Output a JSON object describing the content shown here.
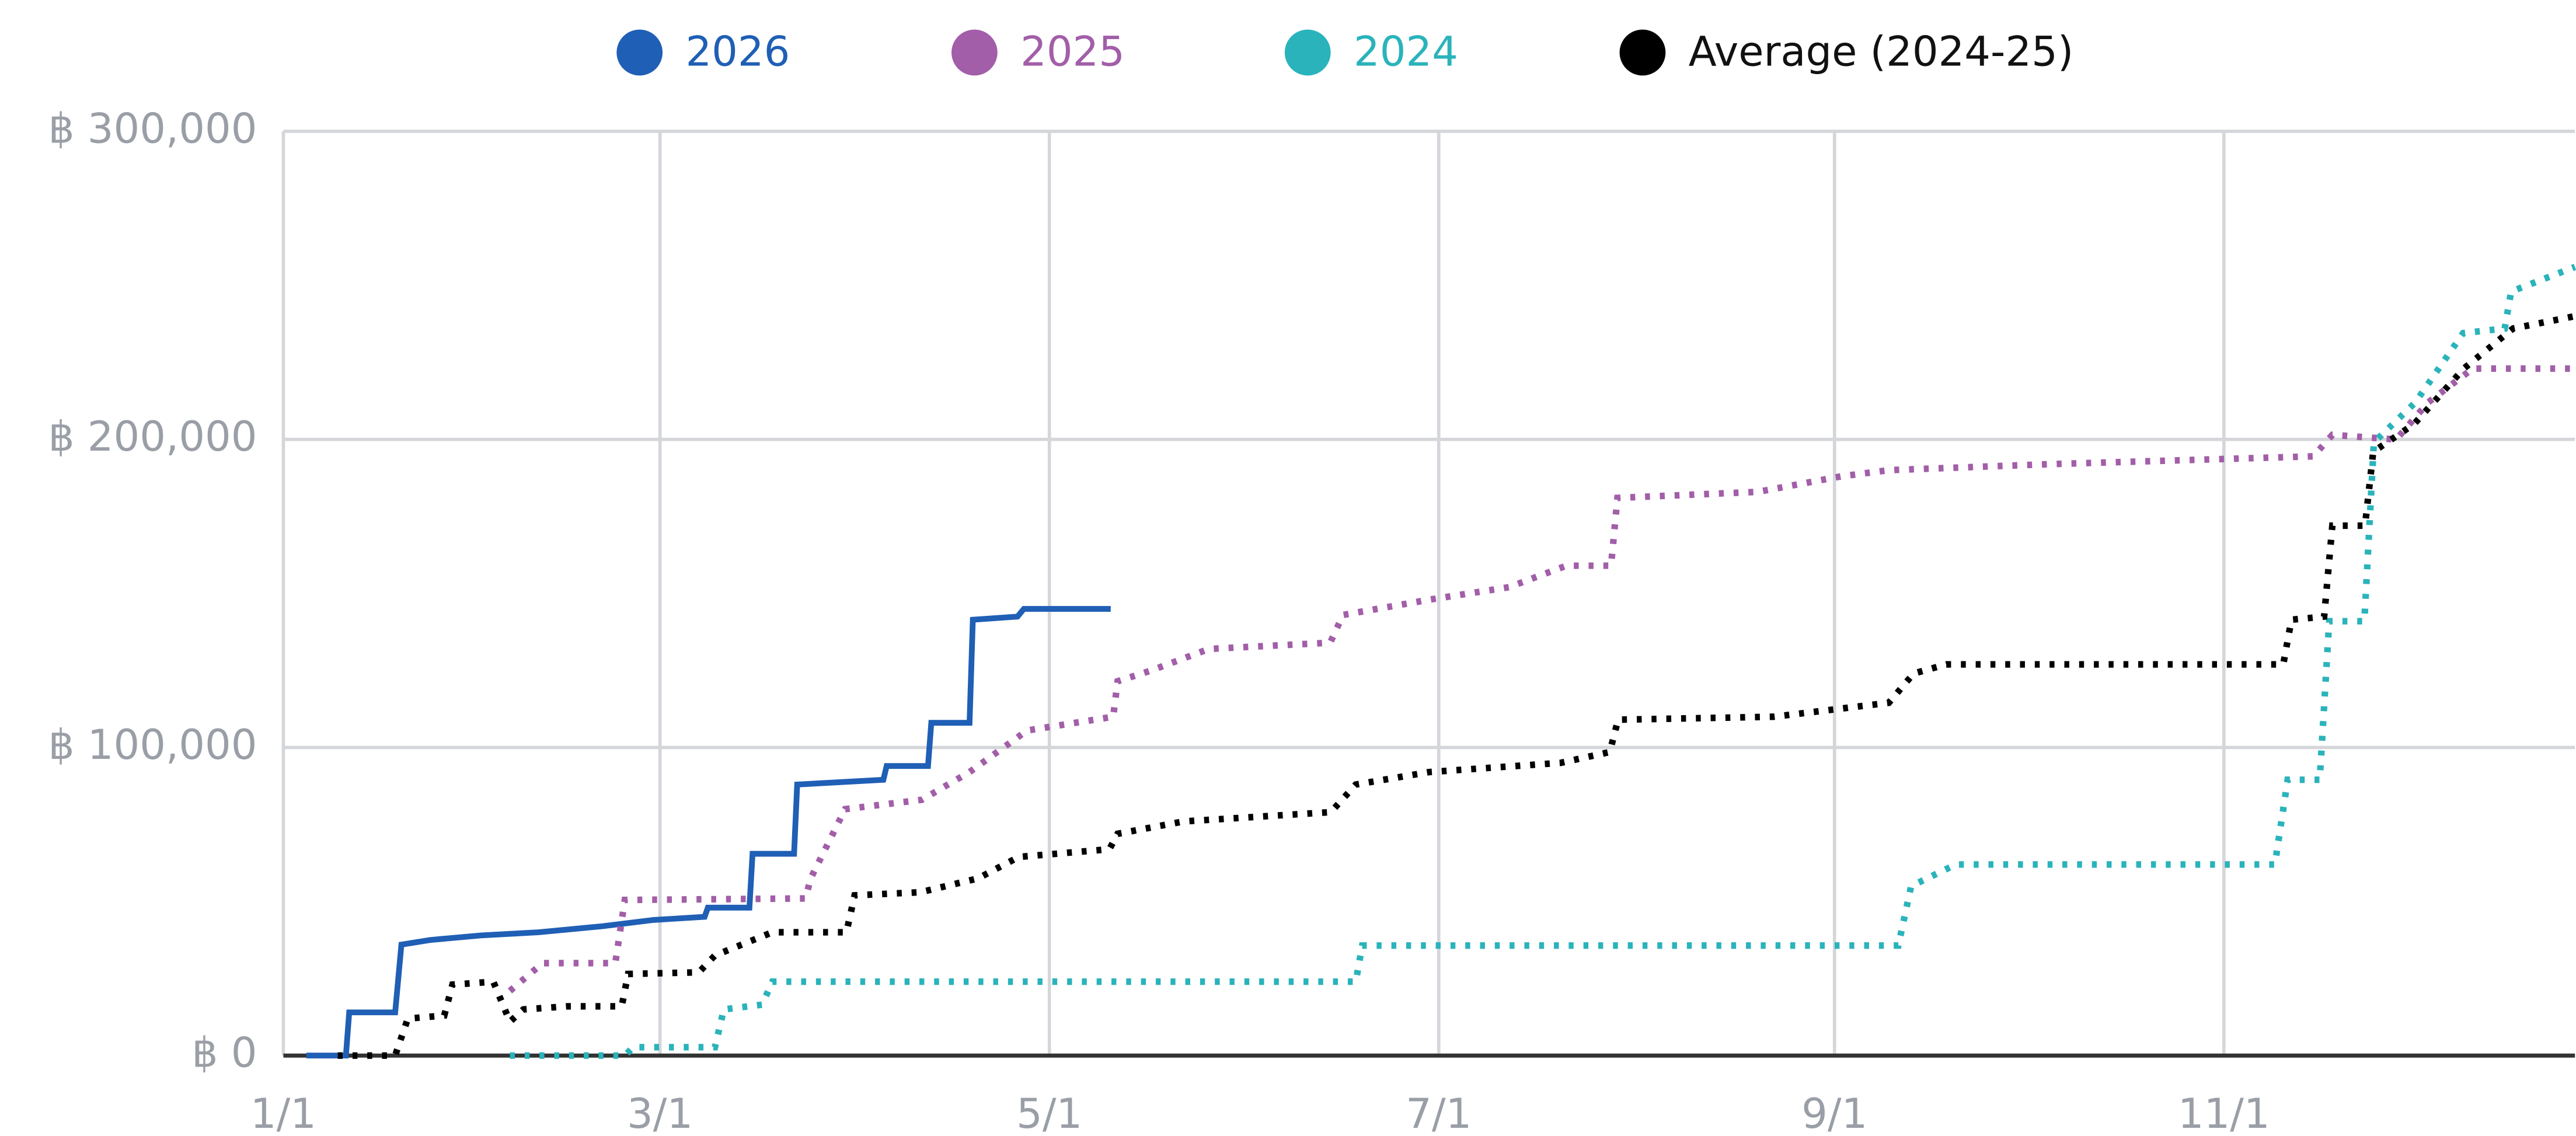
{
  "chart_data": {
    "type": "line",
    "xlim": [
      0,
      359
    ],
    "xticks": [
      {
        "value": 0,
        "label": "1/1"
      },
      {
        "value": 59,
        "label": "3/1"
      },
      {
        "value": 120,
        "label": "5/1"
      },
      {
        "value": 181,
        "label": "7/1"
      },
      {
        "value": 243,
        "label": "9/1"
      },
      {
        "value": 304,
        "label": "11/1"
      }
    ],
    "ylim": [
      0,
      300000
    ],
    "yticks": [
      {
        "value": 0,
        "label": "฿ 0"
      },
      {
        "value": 100000,
        "label": "฿ 100,000"
      },
      {
        "value": 200000,
        "label": "฿ 200,000"
      },
      {
        "value": 300000,
        "label": "฿ 300,000"
      }
    ],
    "grid": true,
    "legend": "top",
    "series": [
      {
        "name": "2026",
        "color": "#1f5fb5",
        "dotted": false,
        "x": [
          3.6,
          9.8,
          10.3,
          17.5,
          18.5,
          23,
          31,
          40,
          50,
          58,
          66,
          66.5,
          73,
          73.5,
          80,
          80.5,
          94,
          94.5,
          101,
          101.5,
          107.5,
          108,
          115,
          116,
          129.6
        ],
        "values": [
          0,
          0,
          14000,
          14000,
          36000,
          37500,
          39000,
          40000,
          42000,
          44000,
          45000,
          48000,
          48000,
          65500,
          65500,
          88000,
          89500,
          94000,
          94000,
          108000,
          108000,
          141500,
          142500,
          145000,
          145000
        ]
      },
      {
        "name": "2025",
        "color": "#a25ea8",
        "dotted": true,
        "x": [
          35.5,
          40.6,
          52,
          53.5,
          81.8,
          82.6,
          88,
          100,
          107.5,
          116.5,
          130,
          130.7,
          136,
          145,
          164,
          166,
          179.5,
          192,
          201,
          208,
          209,
          231,
          244,
          251.5,
          277,
          318,
          321,
          331,
          336,
          343,
          359
        ],
        "values": [
          21000,
          30000,
          30000,
          50500,
          51000,
          57500,
          80000,
          83000,
          92000,
          105500,
          110000,
          121500,
          125000,
          132000,
          134000,
          143000,
          148000,
          152000,
          159000,
          159000,
          181000,
          183000,
          188000,
          190000,
          192000,
          194500,
          201500,
          200000,
          212000,
          223000,
          223000
        ]
      },
      {
        "name": "2024",
        "color": "#2ab3bb",
        "dotted": true,
        "x": [
          35.5,
          53.5,
          54.8,
          67.6,
          69,
          75,
          76.6,
          168,
          169,
          253,
          255,
          262,
          312,
          314,
          319,
          320.5,
          326,
          327.5,
          334,
          341.5,
          348,
          349,
          359
        ],
        "values": [
          0,
          0,
          2700,
          2700,
          15000,
          16500,
          24000,
          24000,
          35700,
          35700,
          55000,
          62000,
          62000,
          89500,
          89500,
          141000,
          141000,
          199000,
          212000,
          234500,
          236000,
          248000,
          256000
        ]
      },
      {
        "name": "Average (2024-25)",
        "color": "#000000",
        "dotted": true,
        "x": [
          8.5,
          17.5,
          19.5,
          25.2,
          26.5,
          32.9,
          35.5,
          37.6,
          44.5,
          53,
          54,
          65.1,
          67.6,
          76.6,
          88.2,
          89.5,
          99.8,
          108.8,
          115.2,
          129.4,
          130.7,
          141,
          164.1,
          168,
          179.5,
          200.1,
          207.8,
          209.1,
          233.5,
          251.5,
          255.4,
          260.5,
          313.3,
          314.6,
          319.7,
          321,
          326.1,
          327.4,
          333.8,
          341.6,
          349.3,
          359
        ],
        "values": [
          0,
          0,
          12000,
          13000,
          23000,
          24000,
          11000,
          15000,
          16000,
          16000,
          26500,
          27000,
          32500,
          40000,
          40000,
          52000,
          53000,
          57500,
          64500,
          67000,
          72000,
          76000,
          79000,
          88000,
          92000,
          95000,
          98500,
          109000,
          110000,
          114500,
          124000,
          127000,
          127000,
          141500,
          142500,
          172000,
          172000,
          196000,
          205000,
          223000,
          236000,
          240000
        ]
      }
    ]
  }
}
